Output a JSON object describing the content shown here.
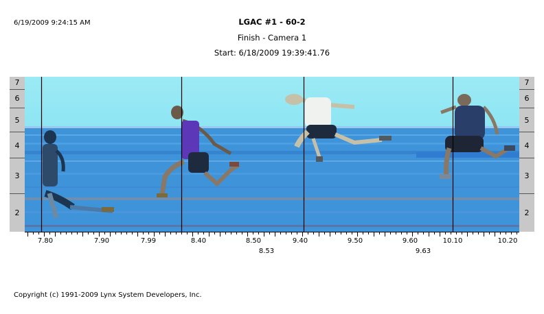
{
  "header": {
    "timestamp": "6/19/2009 9:24:15 AM",
    "title": "LGAC #1 - 60-2",
    "subtitle": "Finish - Camera 1",
    "start": "Start: 6/18/2009 19:39:41.76"
  },
  "lanes": [
    "7",
    "6",
    "5",
    "4",
    "3",
    "2"
  ],
  "time_labels": [
    "7.80",
    "7.90",
    "7.99",
    "8.40",
    "8.50",
    "9.40",
    "9.50",
    "9.60",
    "10.10",
    "10.20"
  ],
  "marker_labels": [
    "8.53",
    "9.63"
  ],
  "footer": {
    "copyright": "Copyright (c) 1991-2009 Lynx System Developers, Inc."
  },
  "colors": {
    "sky": "#7fe2f2",
    "track": "#3e93d9",
    "track_dark": "#2b6fb8"
  }
}
